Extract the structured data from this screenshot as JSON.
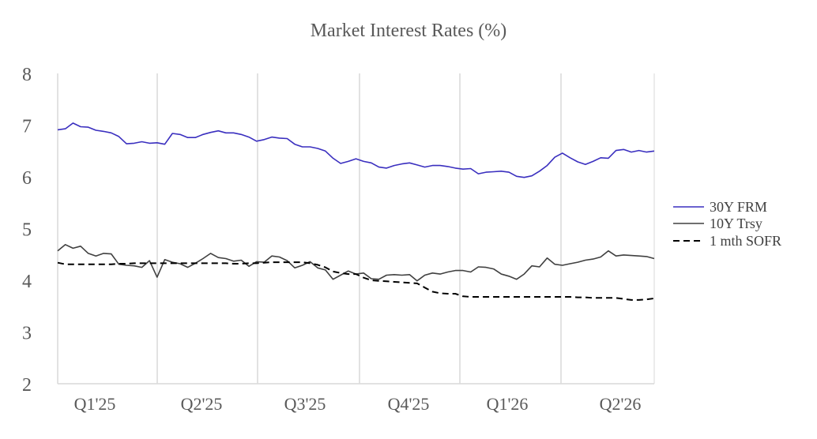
{
  "chart_data": {
    "type": "line",
    "title": "Market Interest Rates (%)",
    "xlabel": "",
    "ylabel": "",
    "ylim": [
      2,
      8
    ],
    "yticks": [
      "2",
      "3",
      "4",
      "5",
      "6",
      "7",
      "8"
    ],
    "xticks": [
      "Q1'25",
      "Q2'25",
      "Q3'25",
      "Q4'25",
      "Q1'26",
      "Q2'26"
    ],
    "grid": "vertical",
    "legend": "right",
    "series": [
      {
        "name": "30Y FRM",
        "color": "#3a2fbf",
        "style": "solid",
        "values": [
          6.91,
          6.93,
          7.04,
          6.97,
          6.96,
          6.9,
          6.88,
          6.85,
          6.78,
          6.64,
          6.65,
          6.68,
          6.65,
          6.66,
          6.63,
          6.84,
          6.82,
          6.76,
          6.76,
          6.82,
          6.86,
          6.89,
          6.85,
          6.85,
          6.82,
          6.77,
          6.69,
          6.72,
          6.77,
          6.75,
          6.74,
          6.63,
          6.58,
          6.58,
          6.55,
          6.5,
          6.36,
          6.26,
          6.3,
          6.35,
          6.3,
          6.27,
          6.19,
          6.17,
          6.22,
          6.25,
          6.27,
          6.23,
          6.19,
          6.22,
          6.22,
          6.2,
          6.17,
          6.15,
          6.16,
          6.06,
          6.09,
          6.1,
          6.11,
          6.09,
          6.01,
          5.99,
          6.02,
          6.11,
          6.22,
          6.38,
          6.46,
          6.37,
          6.29,
          6.24,
          6.3,
          6.37,
          6.36,
          6.51,
          6.53,
          6.48,
          6.51,
          6.48,
          6.5
        ]
      },
      {
        "name": "10Y Trsy",
        "color": "#404040",
        "style": "solid",
        "values": [
          4.57,
          4.69,
          4.62,
          4.66,
          4.52,
          4.47,
          4.52,
          4.51,
          4.31,
          4.29,
          4.28,
          4.25,
          4.38,
          4.06,
          4.4,
          4.35,
          4.32,
          4.25,
          4.33,
          4.42,
          4.52,
          4.44,
          4.42,
          4.37,
          4.39,
          4.27,
          4.36,
          4.35,
          4.47,
          4.45,
          4.38,
          4.24,
          4.29,
          4.36,
          4.24,
          4.2,
          4.02,
          4.1,
          4.18,
          4.12,
          4.14,
          4.03,
          4.02,
          4.1,
          4.11,
          4.1,
          4.11,
          3.99,
          4.1,
          4.14,
          4.12,
          4.16,
          4.19,
          4.19,
          4.16,
          4.26,
          4.25,
          4.22,
          4.12,
          4.08,
          4.02,
          4.12,
          4.28,
          4.26,
          4.43,
          4.31,
          4.29,
          4.32,
          4.35,
          4.39,
          4.41,
          4.45,
          4.57,
          4.47,
          4.49,
          4.48,
          4.47,
          4.46,
          4.42
        ]
      },
      {
        "name": "1 mth SOFR",
        "color": "#000000",
        "style": "dashed",
        "values": [
          4.34,
          4.31,
          4.31,
          4.31,
          4.31,
          4.31,
          4.31,
          4.31,
          4.32,
          4.32,
          4.33,
          4.33,
          4.33,
          4.33,
          4.33,
          4.33,
          4.33,
          4.33,
          4.33,
          4.33,
          4.33,
          4.33,
          4.33,
          4.32,
          4.32,
          4.33,
          4.33,
          4.34,
          4.35,
          4.35,
          4.35,
          4.35,
          4.35,
          4.33,
          4.3,
          4.25,
          4.17,
          4.14,
          4.12,
          4.12,
          4.05,
          4.0,
          3.99,
          3.98,
          3.97,
          3.96,
          3.95,
          3.94,
          3.86,
          3.78,
          3.75,
          3.74,
          3.74,
          3.69,
          3.68,
          3.68,
          3.68,
          3.68,
          3.68,
          3.68,
          3.68,
          3.68,
          3.68,
          3.68,
          3.68,
          3.68,
          3.68,
          3.68,
          3.67,
          3.67,
          3.66,
          3.66,
          3.66,
          3.66,
          3.64,
          3.62,
          3.62,
          3.63,
          3.65
        ]
      }
    ]
  }
}
